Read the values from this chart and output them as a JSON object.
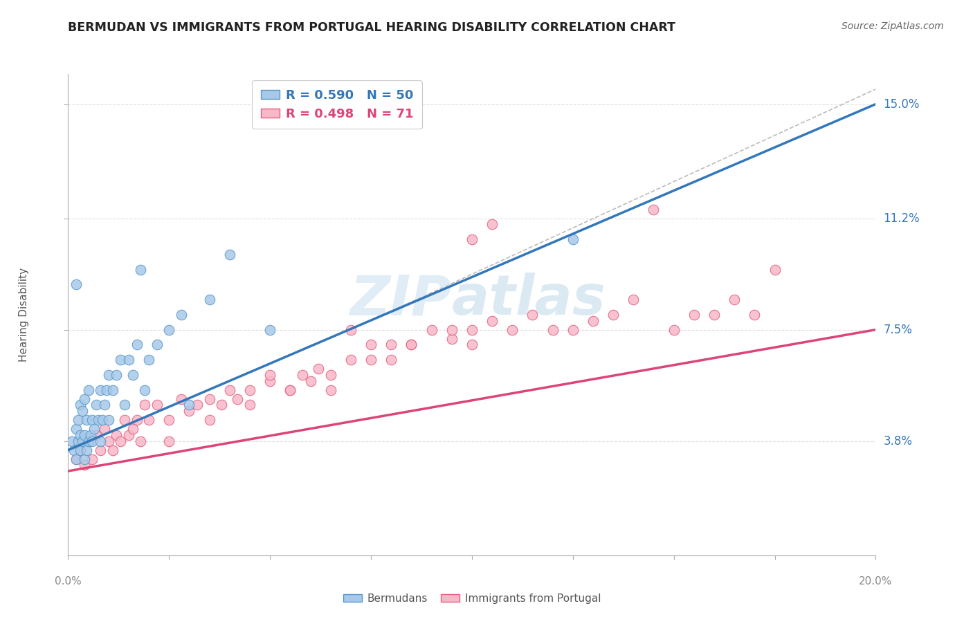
{
  "title": "BERMUDAN VS IMMIGRANTS FROM PORTUGAL HEARING DISABILITY CORRELATION CHART",
  "source": "Source: ZipAtlas.com",
  "xlim": [
    0.0,
    20.0
  ],
  "ylim": [
    0.0,
    16.0
  ],
  "ylabel_ticks": [
    3.8,
    7.5,
    11.2,
    15.0
  ],
  "ylabel_labels": [
    "3.8%",
    "7.5%",
    "11.2%",
    "15.0%"
  ],
  "legend_blue_r": "R = 0.590",
  "legend_blue_n": "N = 50",
  "legend_pink_r": "R = 0.498",
  "legend_pink_n": "N = 71",
  "blue_scatter_color": "#a8c8e8",
  "blue_edge_color": "#5599cc",
  "pink_scatter_color": "#f8b8c8",
  "pink_edge_color": "#e06080",
  "blue_line_color": "#3377bb",
  "pink_line_color": "#dd4477",
  "diag_color": "#bbbbbb",
  "watermark_color": "#cce0f0",
  "blue_scatter_x": [
    0.1,
    0.15,
    0.2,
    0.2,
    0.25,
    0.25,
    0.3,
    0.3,
    0.3,
    0.35,
    0.35,
    0.4,
    0.4,
    0.4,
    0.45,
    0.45,
    0.5,
    0.5,
    0.55,
    0.6,
    0.6,
    0.65,
    0.7,
    0.75,
    0.8,
    0.8,
    0.85,
    0.9,
    0.95,
    1.0,
    1.0,
    1.1,
    1.2,
    1.3,
    1.4,
    1.5,
    1.6,
    1.7,
    1.8,
    1.9,
    2.0,
    2.2,
    2.5,
    2.8,
    3.0,
    3.5,
    4.0,
    5.0,
    12.5,
    0.2
  ],
  "blue_scatter_y": [
    3.8,
    3.5,
    4.2,
    3.2,
    3.8,
    4.5,
    3.5,
    4.0,
    5.0,
    3.8,
    4.8,
    3.2,
    4.0,
    5.2,
    3.5,
    4.5,
    3.8,
    5.5,
    4.0,
    3.8,
    4.5,
    4.2,
    5.0,
    4.5,
    3.8,
    5.5,
    4.5,
    5.0,
    5.5,
    4.5,
    6.0,
    5.5,
    6.0,
    6.5,
    5.0,
    6.5,
    6.0,
    7.0,
    9.5,
    5.5,
    6.5,
    7.0,
    7.5,
    8.0,
    5.0,
    8.5,
    10.0,
    7.5,
    10.5,
    9.0
  ],
  "pink_scatter_x": [
    0.2,
    0.3,
    0.4,
    0.5,
    0.6,
    0.7,
    0.8,
    0.9,
    1.0,
    1.1,
    1.2,
    1.3,
    1.4,
    1.5,
    1.6,
    1.7,
    1.8,
    1.9,
    2.0,
    2.2,
    2.5,
    2.8,
    3.0,
    3.2,
    3.5,
    3.8,
    4.0,
    4.2,
    4.5,
    5.0,
    5.0,
    5.5,
    5.8,
    6.0,
    6.2,
    6.5,
    7.0,
    7.0,
    7.5,
    8.0,
    8.0,
    8.5,
    9.0,
    9.5,
    10.0,
    10.0,
    10.5,
    11.0,
    11.5,
    12.0,
    12.5,
    13.0,
    13.5,
    14.0,
    14.5,
    15.0,
    15.5,
    16.0,
    16.5,
    17.0,
    17.5,
    2.5,
    3.5,
    4.5,
    5.5,
    6.5,
    7.5,
    8.5,
    9.5,
    10.0,
    10.5
  ],
  "pink_scatter_y": [
    3.2,
    3.5,
    3.0,
    3.8,
    3.2,
    4.0,
    3.5,
    4.2,
    3.8,
    3.5,
    4.0,
    3.8,
    4.5,
    4.0,
    4.2,
    4.5,
    3.8,
    5.0,
    4.5,
    5.0,
    4.5,
    5.2,
    4.8,
    5.0,
    5.2,
    5.0,
    5.5,
    5.2,
    5.5,
    5.8,
    6.0,
    5.5,
    6.0,
    5.8,
    6.2,
    6.0,
    6.5,
    7.5,
    7.0,
    6.5,
    7.0,
    7.0,
    7.5,
    7.2,
    7.0,
    7.5,
    7.8,
    7.5,
    8.0,
    7.5,
    7.5,
    7.8,
    8.0,
    8.5,
    11.5,
    7.5,
    8.0,
    8.0,
    8.5,
    8.0,
    9.5,
    3.8,
    4.5,
    5.0,
    5.5,
    5.5,
    6.5,
    7.0,
    7.5,
    10.5,
    11.0
  ],
  "blue_line_x0": 0.0,
  "blue_line_x1": 20.0,
  "blue_line_y0": 3.5,
  "blue_line_y1": 15.0,
  "pink_line_x0": 0.0,
  "pink_line_x1": 20.0,
  "pink_line_y0": 2.8,
  "pink_line_y1": 7.5,
  "diag_line_x0": 7.0,
  "diag_line_x1": 20.0,
  "diag_line_y0": 7.5,
  "diag_line_y1": 15.5
}
